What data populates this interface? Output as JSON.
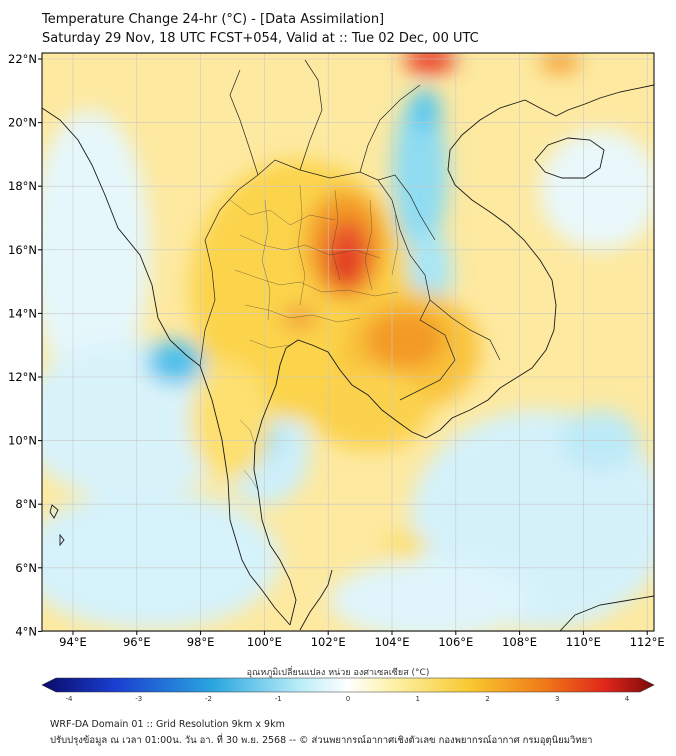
{
  "header": {
    "title": "Temperature Change 24-hr (°C) - [Data Assimilation]",
    "subtitle": "Saturday 29 Nov, 18 UTC FCST+054, Valid at :: Tue 02 Dec, 00 UTC"
  },
  "map": {
    "lon_ticks": [
      "94°E",
      "96°E",
      "98°E",
      "100°E",
      "102°E",
      "104°E",
      "106°E",
      "108°E",
      "110°E",
      "112°E"
    ],
    "lat_ticks": [
      "22°N",
      "20°N",
      "18°N",
      "16°N",
      "14°N",
      "12°N",
      "10°N",
      "8°N",
      "6°N",
      "4°N"
    ]
  },
  "colorbar": {
    "title": "อุณหภูมิเปลี่ยนแปลง หน่วย องศาเซลเซียส (°C)",
    "ticks": [
      "-4",
      "-3",
      "-2",
      "-1",
      "0",
      "1",
      "2",
      "3",
      "4"
    ]
  },
  "footer": {
    "line1": "WRF-DA Domain 01 :: Grid Resolution 9km x 9km",
    "line2": "ปรับปรุงข้อมูล ณ เวลา 01:00น. วัน อา. ที่ 30 พ.ย. 2568 -- © ส่วนพยากรณ์อากาศเชิงตัวเลข กองพยากรณ์อากาศ กรมอุตุนิยมวิทยา"
  },
  "colors": {
    "warm_peak": "#e0261a",
    "warm": "#f59a1e",
    "mild_warm": "#fde35a",
    "neutral": "#ffffff",
    "cool": "#7fd8f0",
    "cold": "#2aa6df"
  }
}
